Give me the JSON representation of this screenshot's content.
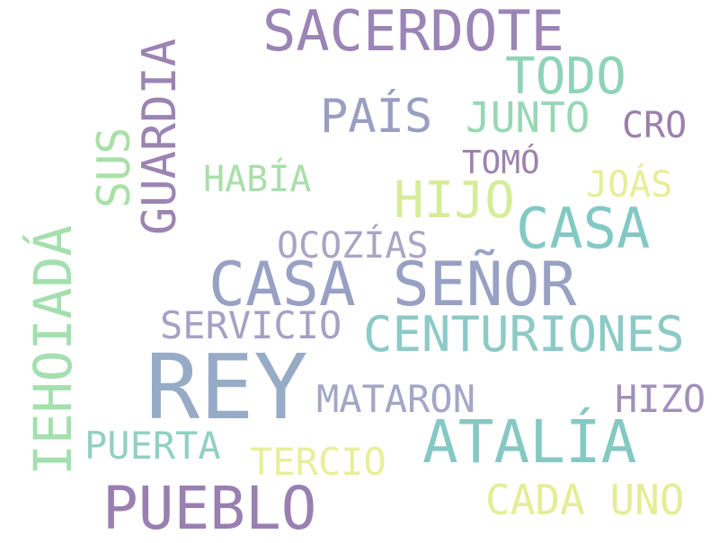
{
  "words": [
    {
      "text": "SACERDOTE",
      "color": "#9b84b6"
    },
    {
      "text": "TODO",
      "color": "#8fd3b8"
    },
    {
      "text": "PAÍS",
      "color": "#9a9ec0"
    },
    {
      "text": "JUNTO",
      "color": "#97d7b6"
    },
    {
      "text": "CRO",
      "color": "#9c7fac"
    },
    {
      "text": "TOMÓ",
      "color": "#9c83ad"
    },
    {
      "text": "HABÍA",
      "color": "#a8dfa9"
    },
    {
      "text": "JOÁS",
      "color": "#e6ee96"
    },
    {
      "text": "HIJO",
      "color": "#d6ec9a"
    },
    {
      "text": "CASA",
      "color": "#82c9c4"
    },
    {
      "text": "OCOZÍAS",
      "color": "#a9a5c2"
    },
    {
      "text": "CASA SEÑOR",
      "color": "#98a1c3"
    },
    {
      "text": "SERVICIO",
      "color": "#a6a0c3"
    },
    {
      "text": "CENTURIONES",
      "color": "#8ccac6"
    },
    {
      "text": "REY",
      "color": "#97abc6"
    },
    {
      "text": "MATARON",
      "color": "#a3a6c6"
    },
    {
      "text": "HIZO",
      "color": "#a290ba"
    },
    {
      "text": "ATALÍA",
      "color": "#86c8c3"
    },
    {
      "text": "PUERTA",
      "color": "#91d0c1"
    },
    {
      "text": "TERCIO",
      "color": "#e8ef99"
    },
    {
      "text": "CADA UNO",
      "color": "#e3ee95"
    },
    {
      "text": "PUEBLO",
      "color": "#9a7fb1"
    },
    {
      "text": "GUARDIA",
      "color": "#9b84b2"
    },
    {
      "text": "SUS",
      "color": "#a9e0a6"
    },
    {
      "text": "IEHOIADÁ",
      "color": "#a4dfae"
    }
  ]
}
